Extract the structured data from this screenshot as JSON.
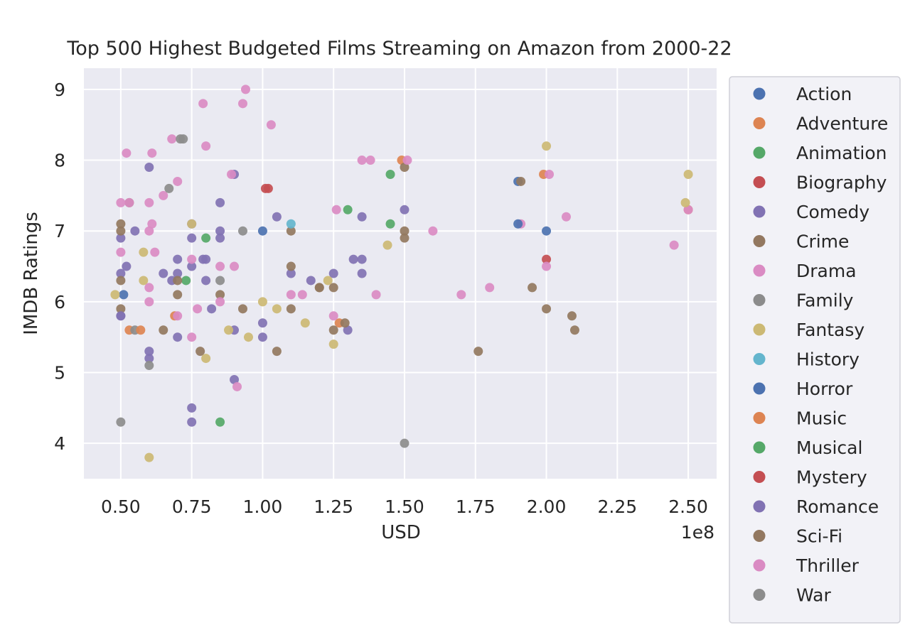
{
  "chart_data": {
    "type": "scatter",
    "title": "Top 500 Highest Budgeted Films Streaming on Amazon from 2000-22",
    "xlabel": "USD",
    "ylabel": "IMDB Ratings",
    "x_offset_label": "1e8",
    "x_scale": 100000000,
    "xlim": [
      0.37,
      2.6
    ],
    "ylim": [
      3.5,
      9.3
    ],
    "x_ticks": [
      0.5,
      0.75,
      1.0,
      1.25,
      1.5,
      1.75,
      2.0,
      2.25,
      2.5
    ],
    "x_tick_labels": [
      "0.50",
      "0.75",
      "1.00",
      "1.25",
      "1.50",
      "1.75",
      "2.00",
      "2.25",
      "2.50"
    ],
    "y_ticks": [
      4,
      5,
      6,
      7,
      8,
      9
    ],
    "y_tick_labels": [
      "4",
      "5",
      "6",
      "7",
      "8",
      "9"
    ],
    "grid": true,
    "legend_position": "outside-right",
    "background_color": "#eaeaf2",
    "series": [
      {
        "name": "Action",
        "color": "#4c72b0",
        "points": [
          [
            0.51,
            6.1
          ],
          [
            1.0,
            7.0
          ],
          [
            1.9,
            7.7
          ],
          [
            2.0,
            7.0
          ]
        ]
      },
      {
        "name": "Adventure",
        "color": "#dd8452",
        "points": [
          [
            0.53,
            5.6
          ],
          [
            0.69,
            5.8
          ],
          [
            1.27,
            5.7
          ],
          [
            1.49,
            8.0
          ],
          [
            1.99,
            7.8
          ],
          [
            2.5,
            7.3
          ]
        ]
      },
      {
        "name": "Animation",
        "color": "#55a868",
        "points": [
          [
            0.73,
            6.3
          ],
          [
            0.8,
            6.9
          ],
          [
            1.3,
            7.3
          ],
          [
            1.45,
            7.1
          ],
          [
            1.45,
            7.8
          ],
          [
            0.85,
            4.3
          ]
        ]
      },
      {
        "name": "Biography",
        "color": "#c44e52",
        "points": [
          [
            1.02,
            7.6
          ],
          [
            2.0,
            6.6
          ]
        ]
      },
      {
        "name": "Comedy",
        "color": "#8172b3",
        "points": [
          [
            0.5,
            6.4
          ],
          [
            0.5,
            5.8
          ],
          [
            0.5,
            6.9
          ],
          [
            0.52,
            6.5
          ],
          [
            0.55,
            7.0
          ],
          [
            0.6,
            7.9
          ],
          [
            0.6,
            5.3
          ],
          [
            0.6,
            5.2
          ],
          [
            0.65,
            6.4
          ],
          [
            0.68,
            6.3
          ],
          [
            0.7,
            6.6
          ],
          [
            0.7,
            6.4
          ],
          [
            0.75,
            7.1
          ],
          [
            0.75,
            6.9
          ],
          [
            0.75,
            6.5
          ],
          [
            0.79,
            6.6
          ],
          [
            0.8,
            6.3
          ],
          [
            0.82,
            5.9
          ],
          [
            0.85,
            7.4
          ],
          [
            0.85,
            7.0
          ],
          [
            0.85,
            6.9
          ],
          [
            0.9,
            7.8
          ],
          [
            0.9,
            5.6
          ],
          [
            0.9,
            4.9
          ],
          [
            1.0,
            5.7
          ],
          [
            1.0,
            5.5
          ],
          [
            1.05,
            7.2
          ],
          [
            1.1,
            6.4
          ],
          [
            1.17,
            6.3
          ],
          [
            1.25,
            6.4
          ],
          [
            1.3,
            5.6
          ],
          [
            1.32,
            6.6
          ],
          [
            1.35,
            7.2
          ],
          [
            1.35,
            6.6
          ],
          [
            1.35,
            6.4
          ],
          [
            1.5,
            7.3
          ],
          [
            0.75,
            4.5
          ],
          [
            0.75,
            4.3
          ],
          [
            0.8,
            6.6
          ],
          [
            0.7,
            5.5
          ]
        ]
      },
      {
        "name": "Crime",
        "color": "#937860",
        "points": [
          [
            0.5,
            7.1
          ],
          [
            0.5,
            7.0
          ],
          [
            0.5,
            6.3
          ],
          [
            0.5,
            5.9
          ],
          [
            0.53,
            7.4
          ],
          [
            0.65,
            5.6
          ],
          [
            0.7,
            6.1
          ],
          [
            0.7,
            6.3
          ],
          [
            0.78,
            5.3
          ],
          [
            0.85,
            6.1
          ],
          [
            0.93,
            5.9
          ],
          [
            1.05,
            5.3
          ],
          [
            1.1,
            7.0
          ],
          [
            1.1,
            6.5
          ],
          [
            1.1,
            5.9
          ],
          [
            1.2,
            6.2
          ],
          [
            1.25,
            6.2
          ],
          [
            1.25,
            5.6
          ],
          [
            1.29,
            5.7
          ],
          [
            1.5,
            7.9
          ],
          [
            1.5,
            7.0
          ],
          [
            1.5,
            6.9
          ],
          [
            1.76,
            5.3
          ],
          [
            1.91,
            7.7
          ],
          [
            1.95,
            6.2
          ],
          [
            2.0,
            5.9
          ],
          [
            2.09,
            5.8
          ],
          [
            2.1,
            5.6
          ]
        ]
      },
      {
        "name": "Drama",
        "color": "#da8bc3",
        "points": [
          [
            0.5,
            7.4
          ],
          [
            0.5,
            6.7
          ],
          [
            0.52,
            8.1
          ],
          [
            0.53,
            7.4
          ],
          [
            0.6,
            7.4
          ],
          [
            0.6,
            7.0
          ],
          [
            0.6,
            6.2
          ],
          [
            0.6,
            6.0
          ],
          [
            0.61,
            8.1
          ],
          [
            0.61,
            7.1
          ],
          [
            0.62,
            6.7
          ],
          [
            0.65,
            7.5
          ],
          [
            0.68,
            8.3
          ],
          [
            0.7,
            7.7
          ],
          [
            0.7,
            5.8
          ],
          [
            0.75,
            6.6
          ],
          [
            0.75,
            5.5
          ],
          [
            0.77,
            5.9
          ],
          [
            0.79,
            8.8
          ],
          [
            0.8,
            8.2
          ],
          [
            0.85,
            6.5
          ],
          [
            0.85,
            6.0
          ],
          [
            0.89,
            7.8
          ],
          [
            0.9,
            6.5
          ],
          [
            0.91,
            4.8
          ],
          [
            0.93,
            8.8
          ],
          [
            0.94,
            9.0
          ],
          [
            1.03,
            8.5
          ],
          [
            1.1,
            6.1
          ],
          [
            1.14,
            6.1
          ],
          [
            1.25,
            5.8
          ],
          [
            1.26,
            7.3
          ],
          [
            1.35,
            8.0
          ],
          [
            1.4,
            6.1
          ],
          [
            1.51,
            8.0
          ],
          [
            1.6,
            7.0
          ],
          [
            1.7,
            6.1
          ],
          [
            1.8,
            6.2
          ],
          [
            1.91,
            7.1
          ],
          [
            2.0,
            6.5
          ],
          [
            2.01,
            7.8
          ],
          [
            2.07,
            7.2
          ],
          [
            2.45,
            6.8
          ],
          [
            2.5,
            7.3
          ]
        ]
      },
      {
        "name": "Family",
        "color": "#8c8c8c",
        "points": [
          [
            0.5,
            4.3
          ],
          [
            0.55,
            5.6
          ],
          [
            0.6,
            5.1
          ],
          [
            0.67,
            7.6
          ],
          [
            0.71,
            8.3
          ],
          [
            0.85,
            6.3
          ],
          [
            0.93,
            7.0
          ],
          [
            1.5,
            4.0
          ]
        ]
      },
      {
        "name": "Fantasy",
        "color": "#ccb974",
        "points": [
          [
            0.48,
            6.1
          ],
          [
            0.58,
            6.7
          ],
          [
            0.58,
            6.3
          ],
          [
            0.6,
            3.8
          ],
          [
            0.75,
            7.1
          ],
          [
            0.8,
            5.2
          ],
          [
            0.88,
            5.6
          ],
          [
            0.95,
            5.5
          ],
          [
            1.0,
            6.0
          ],
          [
            1.05,
            5.9
          ],
          [
            1.15,
            5.7
          ],
          [
            1.23,
            6.3
          ],
          [
            1.25,
            5.4
          ],
          [
            1.44,
            6.8
          ],
          [
            2.0,
            8.2
          ],
          [
            2.5,
            7.8
          ],
          [
            2.49,
            7.4
          ]
        ]
      },
      {
        "name": "History",
        "color": "#64b5cd",
        "points": [
          [
            1.1,
            7.1
          ]
        ]
      },
      {
        "name": "Horror",
        "color": "#4c72b0",
        "points": [
          [
            1.9,
            7.1
          ]
        ]
      },
      {
        "name": "Music",
        "color": "#dd8452",
        "points": [
          [
            0.57,
            5.6
          ]
        ]
      },
      {
        "name": "Musical",
        "color": "#55a868",
        "points": []
      },
      {
        "name": "Mystery",
        "color": "#c44e52",
        "points": [
          [
            1.01,
            7.6
          ]
        ]
      },
      {
        "name": "Romance",
        "color": "#8172b3",
        "points": [
          [
            0.5,
            5.8
          ]
        ]
      },
      {
        "name": "Sci-Fi",
        "color": "#937860",
        "points": [
          [
            1.2,
            6.2
          ]
        ]
      },
      {
        "name": "Thriller",
        "color": "#da8bc3",
        "points": [
          [
            1.38,
            8.0
          ]
        ]
      },
      {
        "name": "War",
        "color": "#8c8c8c",
        "points": [
          [
            0.72,
            8.3
          ]
        ]
      }
    ]
  }
}
